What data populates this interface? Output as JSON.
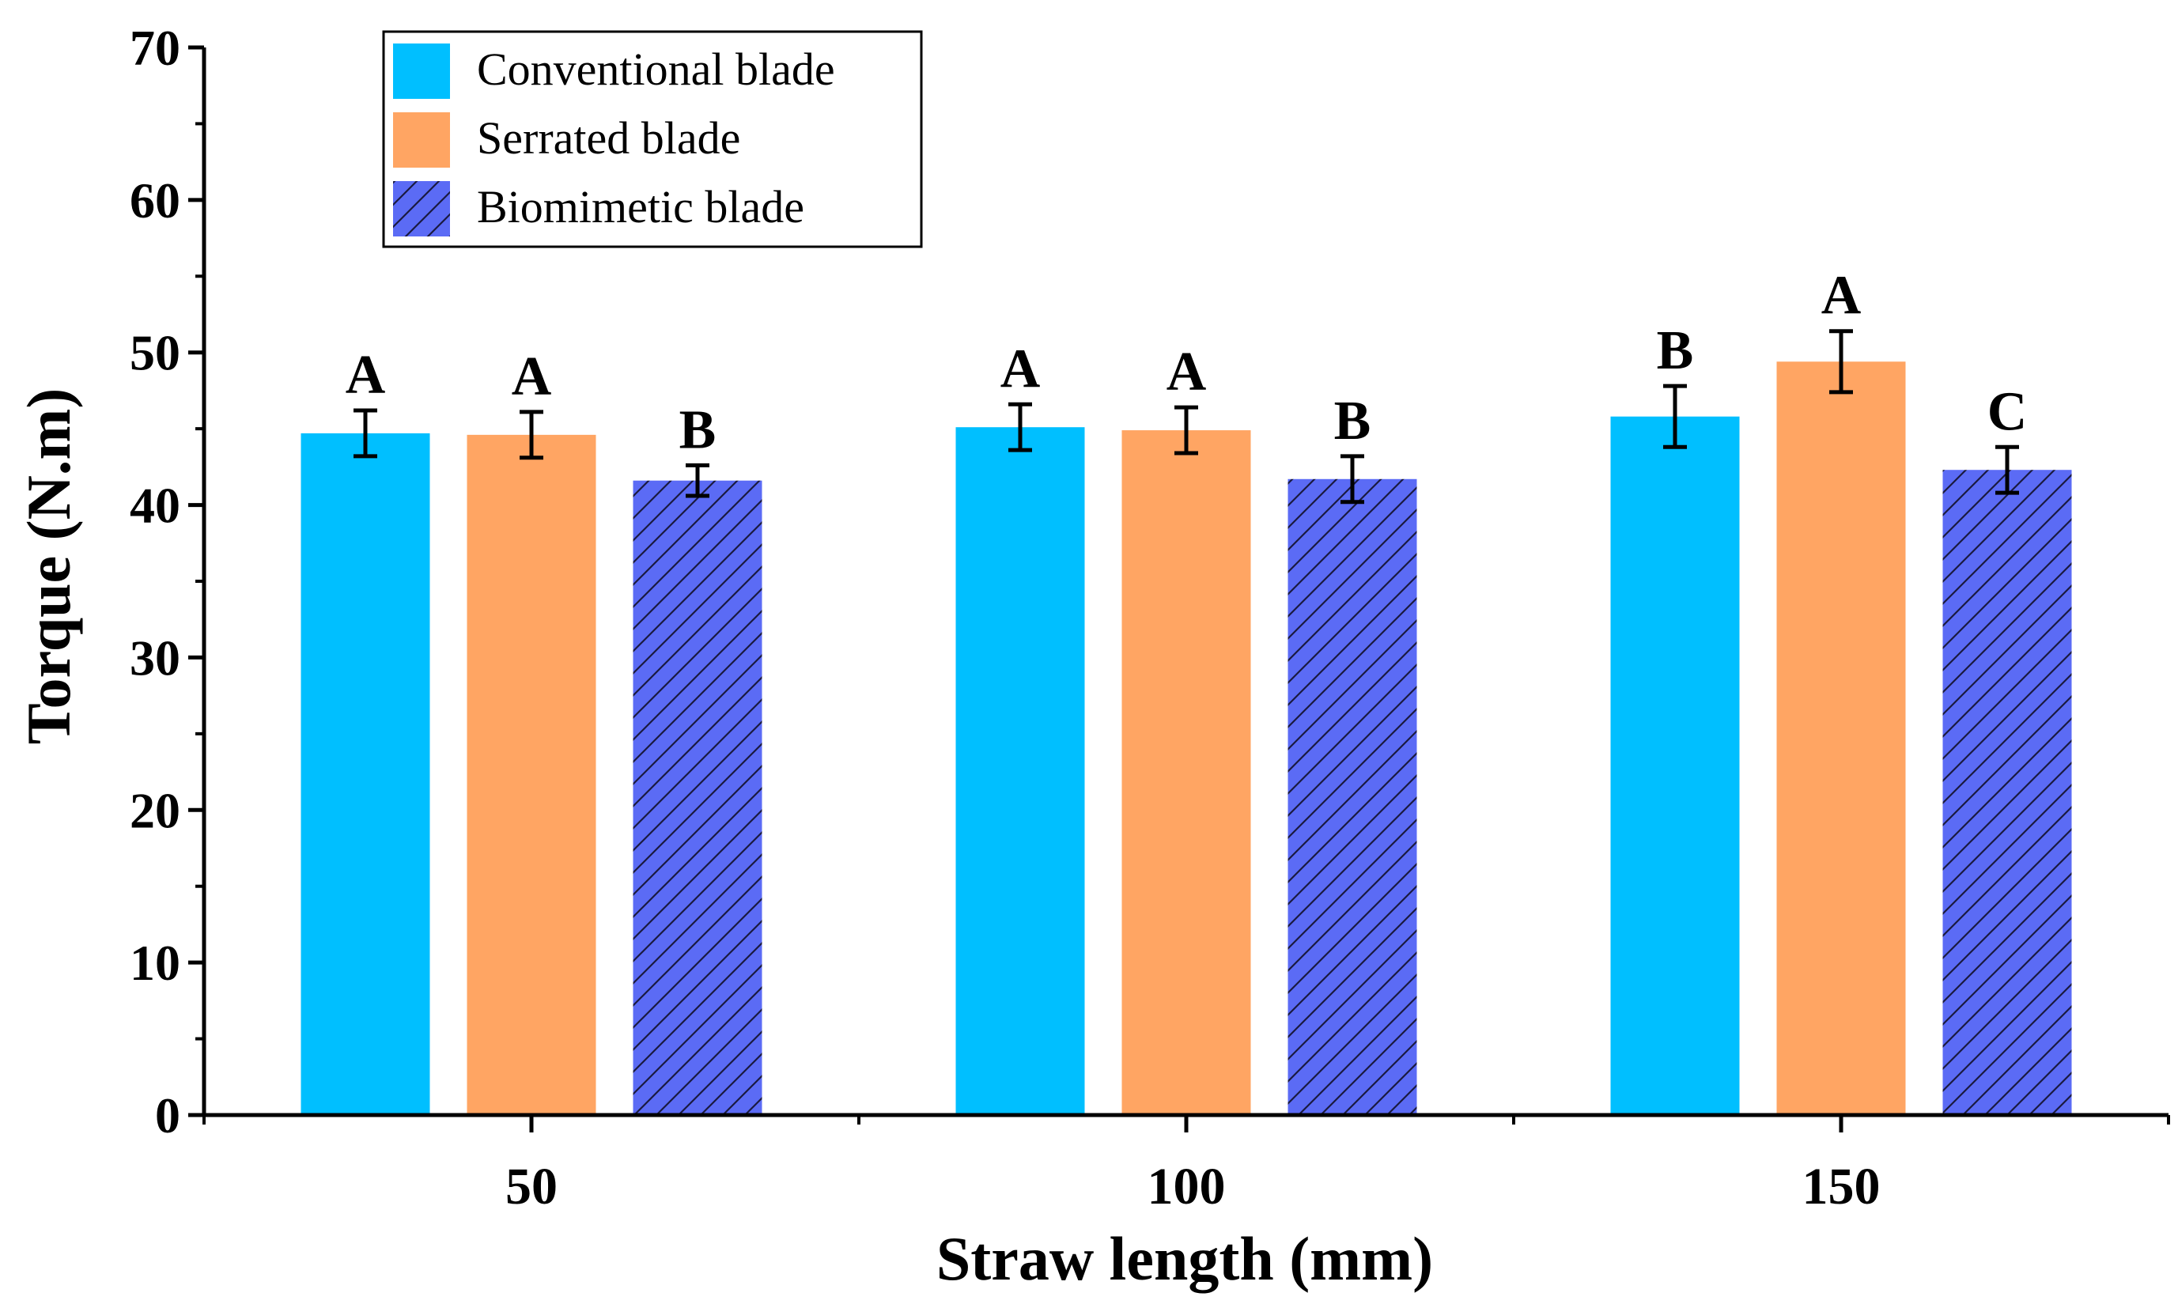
{
  "chart_data": {
    "type": "bar",
    "title": "",
    "xlabel": "Straw length (mm)",
    "ylabel": "Torque (N.m)",
    "ylim": [
      0,
      70
    ],
    "yticks": [
      "0",
      "10",
      "20",
      "30",
      "40",
      "50",
      "60",
      "70"
    ],
    "categories": [
      "50",
      "100",
      "150"
    ],
    "legend_position": "top-left",
    "series": [
      {
        "name": "Conventional blade",
        "color": "#00BFFF",
        "pattern": "solid",
        "values": [
          44.7,
          45.1,
          45.8
        ],
        "errors": [
          1.5,
          1.5,
          2.0
        ],
        "letters": [
          "A",
          "A",
          "B"
        ]
      },
      {
        "name": "Serrated blade",
        "color": "#FFA563",
        "pattern": "solid",
        "values": [
          44.6,
          44.9,
          49.4
        ],
        "errors": [
          1.5,
          1.5,
          2.0
        ],
        "letters": [
          "A",
          "A",
          "A"
        ]
      },
      {
        "name": "Biomimetic blade",
        "color": "#5B6BF5",
        "pattern": "hatch",
        "values": [
          41.6,
          41.7,
          42.3
        ],
        "errors": [
          1.0,
          1.5,
          1.5
        ],
        "letters": [
          "B",
          "B",
          "C"
        ]
      }
    ]
  }
}
